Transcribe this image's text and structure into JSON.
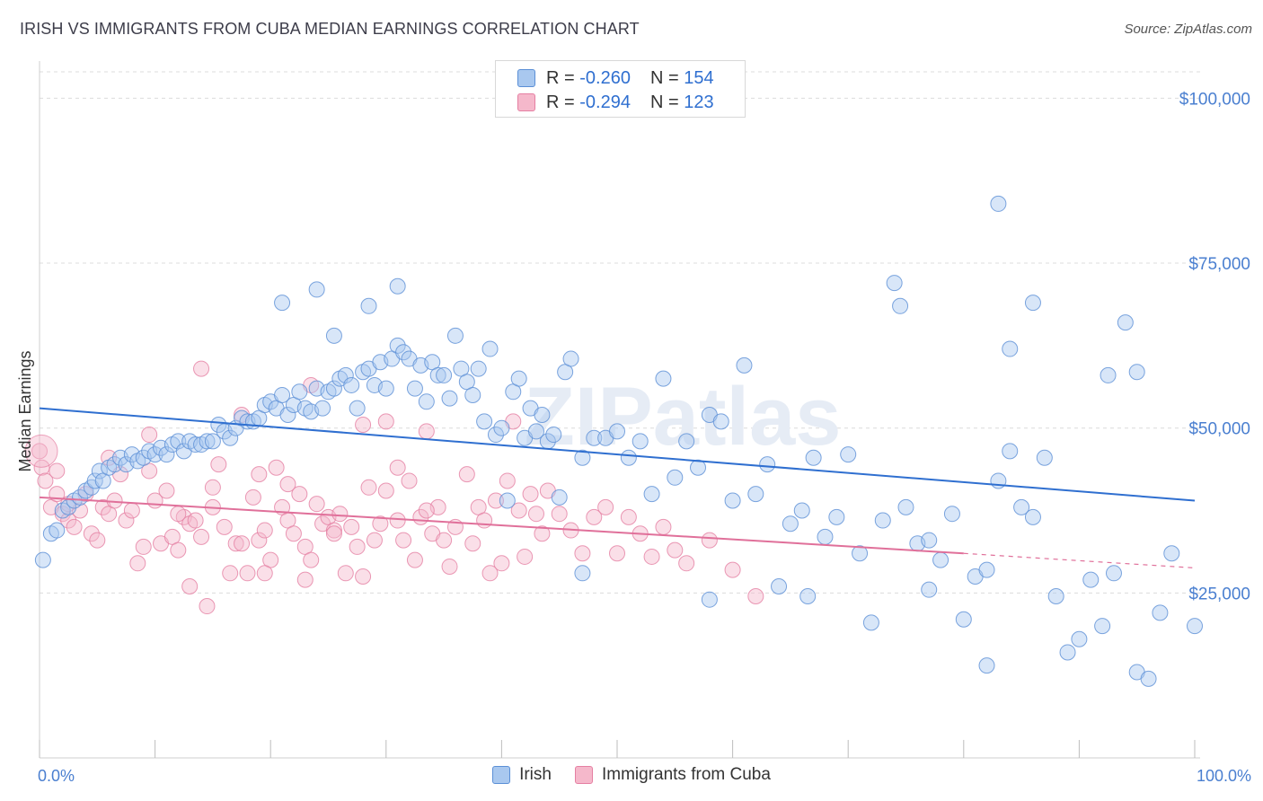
{
  "title": "IRISH VS IMMIGRANTS FROM CUBA MEDIAN EARNINGS CORRELATION CHART",
  "source": "Source: ZipAtlas.com",
  "watermark": "ZIPatlas",
  "legend_top": [
    {
      "r_label": "R =",
      "r_value": "-0.260",
      "n_label": "N =",
      "n_value": "154"
    },
    {
      "r_label": "R =",
      "r_value": "-0.294",
      "n_label": "N =",
      "n_value": "123"
    }
  ],
  "legend_bottom": [
    "Irish",
    "Immigrants from Cuba"
  ],
  "colors": {
    "irish_fill": "#a9c8ef",
    "irish_stroke": "#5b8fd6",
    "irish_line": "#2f6fd0",
    "cuba_fill": "#f5b8cb",
    "cuba_stroke": "#e57fa2",
    "cuba_line": "#e0709a",
    "tick_label": "#4a7fd0"
  },
  "chart_data": {
    "type": "scatter",
    "xlabel": "",
    "ylabel": "Median Earnings",
    "xlim": [
      0,
      100
    ],
    "ylim": [
      0,
      104000
    ],
    "x_tick_labels": [
      "0.0%",
      "100.0%"
    ],
    "y_ticks": [
      25000,
      50000,
      75000,
      100000
    ],
    "y_tick_labels": [
      "$25,000",
      "$50,000",
      "$75,000",
      "$100,000"
    ],
    "grid": true,
    "legend": "top-center",
    "series": [
      {
        "name": "Irish",
        "trend": {
          "x": [
            0,
            100
          ],
          "y": [
            53000,
            39000
          ]
        },
        "points": [
          [
            0.3,
            30000
          ],
          [
            1,
            34000
          ],
          [
            1.5,
            34500
          ],
          [
            2,
            37500
          ],
          [
            2.5,
            38000
          ],
          [
            3,
            39000
          ],
          [
            3.5,
            39500
          ],
          [
            4,
            40500
          ],
          [
            4.5,
            41000
          ],
          [
            4.8,
            42000
          ],
          [
            5.2,
            43500
          ],
          [
            5.5,
            42000
          ],
          [
            6,
            44000
          ],
          [
            6.5,
            44500
          ],
          [
            7,
            45500
          ],
          [
            7.5,
            44500
          ],
          [
            8,
            46000
          ],
          [
            8.5,
            45000
          ],
          [
            9,
            45500
          ],
          [
            9.5,
            46500
          ],
          [
            10,
            46000
          ],
          [
            10.5,
            47000
          ],
          [
            11,
            46000
          ],
          [
            11.5,
            47500
          ],
          [
            12,
            48000
          ],
          [
            12.5,
            46500
          ],
          [
            13,
            48000
          ],
          [
            13.5,
            47500
          ],
          [
            14,
            47500
          ],
          [
            14.5,
            48000
          ],
          [
            15,
            48000
          ],
          [
            15.5,
            50500
          ],
          [
            16,
            49500
          ],
          [
            16.5,
            48500
          ],
          [
            17,
            50000
          ],
          [
            17.5,
            51500
          ],
          [
            18,
            51000
          ],
          [
            18.5,
            51000
          ],
          [
            19,
            51500
          ],
          [
            19.5,
            53500
          ],
          [
            20,
            54000
          ],
          [
            20.5,
            53000
          ],
          [
            21,
            55000
          ],
          [
            21.5,
            52000
          ],
          [
            22,
            53500
          ],
          [
            22.5,
            55500
          ],
          [
            23,
            53000
          ],
          [
            23.5,
            52500
          ],
          [
            24,
            56000
          ],
          [
            24.5,
            53000
          ],
          [
            25,
            55500
          ],
          [
            25.5,
            56000
          ],
          [
            26,
            57500
          ],
          [
            26.5,
            58000
          ],
          [
            27,
            56500
          ],
          [
            27.5,
            53000
          ],
          [
            28,
            58500
          ],
          [
            28.5,
            59000
          ],
          [
            29,
            56500
          ],
          [
            29.5,
            60000
          ],
          [
            30,
            56000
          ],
          [
            30.5,
            60500
          ],
          [
            31,
            62500
          ],
          [
            31.5,
            61500
          ],
          [
            32,
            60500
          ],
          [
            32.5,
            56000
          ],
          [
            33,
            59500
          ],
          [
            33.5,
            54000
          ],
          [
            34,
            60000
          ],
          [
            34.5,
            58000
          ],
          [
            35,
            58000
          ],
          [
            35.5,
            54500
          ],
          [
            36,
            64000
          ],
          [
            36.5,
            59000
          ],
          [
            37,
            57000
          ],
          [
            37.5,
            55000
          ],
          [
            38,
            59000
          ],
          [
            38.5,
            51000
          ],
          [
            39,
            62000
          ],
          [
            39.5,
            49000
          ],
          [
            40,
            50000
          ],
          [
            40.5,
            39000
          ],
          [
            41,
            55500
          ],
          [
            41.5,
            57500
          ],
          [
            42,
            48500
          ],
          [
            42.5,
            53000
          ],
          [
            43,
            49500
          ],
          [
            43.5,
            52000
          ],
          [
            44,
            48000
          ],
          [
            44.5,
            49000
          ],
          [
            45,
            39500
          ],
          [
            45.5,
            58500
          ],
          [
            46,
            60500
          ],
          [
            47,
            45500
          ],
          [
            48,
            48500
          ],
          [
            49,
            48500
          ],
          [
            50,
            49500
          ],
          [
            51,
            45500
          ],
          [
            52,
            48000
          ],
          [
            53,
            40000
          ],
          [
            54,
            57500
          ],
          [
            55,
            42500
          ],
          [
            56,
            48000
          ],
          [
            57,
            44000
          ],
          [
            58,
            52000
          ],
          [
            59,
            51000
          ],
          [
            60,
            39000
          ],
          [
            61,
            59500
          ],
          [
            62,
            40000
          ],
          [
            63,
            44500
          ],
          [
            64,
            26000
          ],
          [
            65,
            35500
          ],
          [
            66,
            37500
          ],
          [
            67,
            45500
          ],
          [
            68,
            33500
          ],
          [
            69,
            36500
          ],
          [
            70,
            46000
          ],
          [
            71,
            31000
          ],
          [
            72,
            20500
          ],
          [
            73,
            36000
          ],
          [
            74,
            72000
          ],
          [
            75,
            38000
          ],
          [
            76,
            32500
          ],
          [
            77,
            25500
          ],
          [
            78,
            30000
          ],
          [
            79,
            37000
          ],
          [
            80,
            21000
          ],
          [
            81,
            27500
          ],
          [
            82,
            28500
          ],
          [
            83,
            42000
          ],
          [
            84,
            46500
          ],
          [
            85,
            38000
          ],
          [
            86,
            36500
          ],
          [
            87,
            45500
          ],
          [
            88,
            24500
          ],
          [
            89,
            16000
          ],
          [
            90,
            18000
          ],
          [
            91,
            27000
          ],
          [
            92,
            20000
          ],
          [
            93,
            28000
          ],
          [
            94,
            66000
          ],
          [
            95,
            13000
          ],
          [
            96,
            12000
          ],
          [
            97,
            22000
          ],
          [
            98,
            31000
          ],
          [
            100,
            20000
          ],
          [
            47,
            28000
          ],
          [
            58,
            24000
          ],
          [
            66.5,
            24500
          ],
          [
            77,
            33000
          ],
          [
            82,
            14000
          ],
          [
            86,
            69000
          ],
          [
            84,
            62000
          ],
          [
            92.5,
            58000
          ],
          [
            95,
            58500
          ],
          [
            83,
            84000
          ],
          [
            74.5,
            68500
          ],
          [
            21,
            69000
          ],
          [
            24,
            71000
          ],
          [
            25.5,
            64000
          ],
          [
            28.5,
            68500
          ],
          [
            31,
            71500
          ]
        ]
      },
      {
        "name": "Immigrants from Cuba",
        "trend": {
          "x": [
            0,
            80
          ],
          "y": [
            39500,
            31000
          ]
        },
        "trend_dashed": {
          "x": [
            80,
            100
          ],
          "y": [
            31000,
            28800
          ]
        },
        "points": [
          [
            0.2,
            44000
          ],
          [
            0.5,
            42000
          ],
          [
            1,
            38000
          ],
          [
            1.5,
            40000
          ],
          [
            2,
            37000
          ],
          [
            2.5,
            36000
          ],
          [
            3,
            35000
          ],
          [
            3.5,
            37500
          ],
          [
            4,
            40000
          ],
          [
            4.5,
            34000
          ],
          [
            5,
            33000
          ],
          [
            5.5,
            38000
          ],
          [
            6,
            37000
          ],
          [
            6.5,
            39000
          ],
          [
            7,
            43000
          ],
          [
            7.5,
            36000
          ],
          [
            8,
            37500
          ],
          [
            8.5,
            29500
          ],
          [
            9,
            32000
          ],
          [
            9.5,
            49000
          ],
          [
            10,
            39000
          ],
          [
            10.5,
            32500
          ],
          [
            11,
            40500
          ],
          [
            11.5,
            33500
          ],
          [
            12,
            31500
          ],
          [
            12.5,
            36500
          ],
          [
            13,
            35500
          ],
          [
            13.5,
            36000
          ],
          [
            14,
            33500
          ],
          [
            14.5,
            23000
          ],
          [
            15,
            41000
          ],
          [
            15.5,
            44500
          ],
          [
            16,
            35000
          ],
          [
            16.5,
            28000
          ],
          [
            17,
            32500
          ],
          [
            17.5,
            52000
          ],
          [
            18,
            28000
          ],
          [
            18.5,
            39500
          ],
          [
            19,
            33000
          ],
          [
            19.5,
            34500
          ],
          [
            20,
            30000
          ],
          [
            20.5,
            44000
          ],
          [
            21,
            38000
          ],
          [
            21.5,
            36000
          ],
          [
            22,
            34000
          ],
          [
            22.5,
            40000
          ],
          [
            23,
            32000
          ],
          [
            23.5,
            56500
          ],
          [
            24,
            38500
          ],
          [
            24.5,
            35500
          ],
          [
            25,
            36500
          ],
          [
            25.5,
            34500
          ],
          [
            26,
            37000
          ],
          [
            26.5,
            28000
          ],
          [
            27,
            35000
          ],
          [
            27.5,
            32000
          ],
          [
            28,
            50500
          ],
          [
            28.5,
            41000
          ],
          [
            29,
            33000
          ],
          [
            29.5,
            35500
          ],
          [
            30,
            40500
          ],
          [
            31,
            36000
          ],
          [
            31.5,
            33000
          ],
          [
            32,
            42000
          ],
          [
            32.5,
            30000
          ],
          [
            33,
            36500
          ],
          [
            33.5,
            49500
          ],
          [
            34,
            34000
          ],
          [
            34.5,
            38000
          ],
          [
            35,
            33000
          ],
          [
            35.5,
            29000
          ],
          [
            36,
            35000
          ],
          [
            37,
            43000
          ],
          [
            37.5,
            32500
          ],
          [
            38,
            38000
          ],
          [
            39,
            28000
          ],
          [
            39.5,
            39000
          ],
          [
            40,
            29500
          ],
          [
            41,
            51000
          ],
          [
            41.5,
            37500
          ],
          [
            42,
            30500
          ],
          [
            42.5,
            40000
          ],
          [
            43,
            37000
          ],
          [
            43.5,
            34000
          ],
          [
            44,
            40500
          ],
          [
            45,
            37000
          ],
          [
            46,
            34500
          ],
          [
            47,
            31000
          ],
          [
            48,
            36500
          ],
          [
            49,
            38000
          ],
          [
            50,
            31000
          ],
          [
            51,
            36500
          ],
          [
            52,
            34000
          ],
          [
            53,
            30500
          ],
          [
            54,
            35000
          ],
          [
            55,
            31500
          ],
          [
            56,
            29500
          ],
          [
            58,
            33000
          ],
          [
            60,
            28500
          ],
          [
            62,
            24500
          ],
          [
            0,
            46500
          ],
          [
            1.5,
            43500
          ],
          [
            2.5,
            38500
          ],
          [
            6,
            45500
          ],
          [
            9.5,
            43500
          ],
          [
            12,
            37000
          ],
          [
            15,
            38000
          ],
          [
            17.5,
            32500
          ],
          [
            19.5,
            28000
          ],
          [
            21.5,
            41500
          ],
          [
            23,
            27000
          ],
          [
            25.5,
            34000
          ],
          [
            28,
            27500
          ],
          [
            31,
            44000
          ],
          [
            33.5,
            37500
          ],
          [
            38.5,
            36000
          ],
          [
            40.5,
            42000
          ],
          [
            14,
            59000
          ],
          [
            30,
            51000
          ],
          [
            23.5,
            30000
          ],
          [
            13,
            26000
          ],
          [
            19,
            43000
          ]
        ]
      }
    ]
  }
}
